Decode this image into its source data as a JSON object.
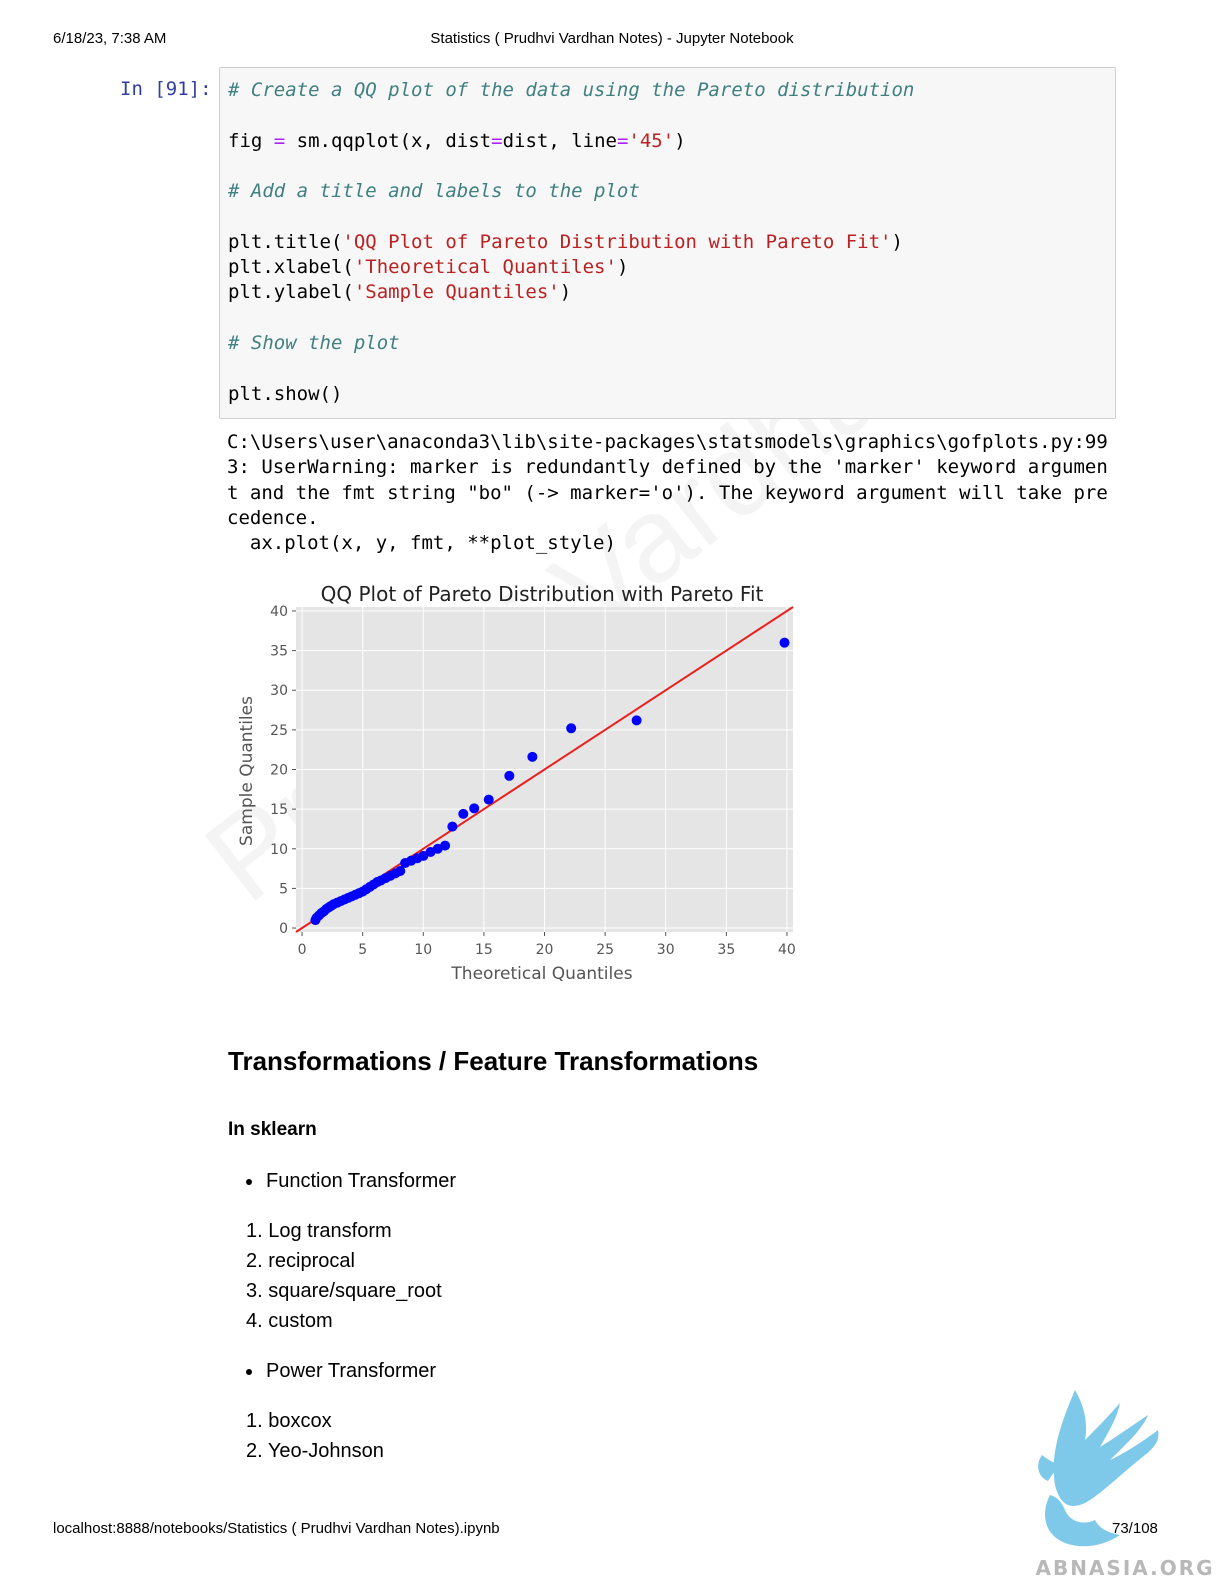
{
  "header": {
    "datetime": "6/18/23, 7:38 AM",
    "title": "Statistics ( Prudhvi Vardhan Notes) - Jupyter Notebook"
  },
  "footer": {
    "url": "localhost:8888/notebooks/Statistics ( Prudhvi Vardhan Notes).ipynb",
    "page": "73/108"
  },
  "cell": {
    "prompt": "In [91]:",
    "comment1": "# Create a QQ plot of the data using the Pareto distribution",
    "line_fig_a": "fig ",
    "line_fig_eq1": "=",
    "line_fig_b": " sm.qqplot(x, dist",
    "line_fig_eq2": "=",
    "line_fig_c": "dist, line",
    "line_fig_eq3": "=",
    "line_fig_str": "'45'",
    "line_fig_d": ")",
    "comment2": "# Add a title and labels to the plot",
    "title_call": "plt.title(",
    "title_str": "'QQ Plot of Pareto Distribution with Pareto Fit'",
    "xlabel_call": "plt.xlabel(",
    "xlabel_str": "'Theoretical Quantiles'",
    "ylabel_call": "plt.ylabel(",
    "ylabel_str": "'Sample Quantiles'",
    "close_paren": ")",
    "comment3": "# Show the plot",
    "show_call": "plt.show()"
  },
  "output": {
    "lines": [
      "C:\\Users\\user\\anaconda3\\lib\\site-packages\\statsmodels\\graphics\\gofplots.py:99",
      "3: UserWarning: marker is redundantly defined by the 'marker' keyword argumen",
      "t and the fmt string \"bo\" (-> marker='o'). The keyword argument will take pre",
      "cedence.",
      "  ax.plot(x, y, fmt, **plot_style)"
    ]
  },
  "chart_data": {
    "type": "scatter",
    "title": "QQ Plot of Pareto Distribution with Pareto Fit",
    "xlabel": "Theoretical Quantiles",
    "ylabel": "Sample Quantiles",
    "xlim": [
      -0.5,
      40.5
    ],
    "ylim": [
      -0.5,
      40.5
    ],
    "xticks": [
      0,
      5,
      10,
      15,
      20,
      25,
      30,
      35,
      40
    ],
    "yticks": [
      0,
      5,
      10,
      15,
      20,
      25,
      30,
      35,
      40
    ],
    "grid": true,
    "point_color": "#0000ff",
    "line_color": "#e8211e",
    "background_color": "#e5e5e5",
    "reference_line": {
      "type": "45-degree",
      "from": [
        -0.5,
        -0.5
      ],
      "to": [
        40.5,
        40.5
      ]
    },
    "points": [
      [
        1.1,
        1.0
      ],
      [
        1.2,
        1.3
      ],
      [
        1.4,
        1.6
      ],
      [
        1.6,
        1.9
      ],
      [
        1.8,
        2.1
      ],
      [
        2.0,
        2.4
      ],
      [
        2.2,
        2.6
      ],
      [
        2.4,
        2.8
      ],
      [
        2.6,
        3.0
      ],
      [
        2.9,
        3.2
      ],
      [
        3.2,
        3.4
      ],
      [
        3.5,
        3.6
      ],
      [
        3.8,
        3.8
      ],
      [
        4.1,
        4.0
      ],
      [
        4.4,
        4.2
      ],
      [
        4.7,
        4.4
      ],
      [
        5.0,
        4.6
      ],
      [
        5.3,
        4.9
      ],
      [
        5.6,
        5.2
      ],
      [
        5.9,
        5.5
      ],
      [
        6.2,
        5.8
      ],
      [
        6.5,
        6.0
      ],
      [
        6.9,
        6.3
      ],
      [
        7.3,
        6.6
      ],
      [
        7.7,
        6.9
      ],
      [
        8.1,
        7.2
      ],
      [
        8.5,
        8.2
      ],
      [
        9.0,
        8.5
      ],
      [
        9.5,
        8.8
      ],
      [
        10.0,
        9.1
      ],
      [
        10.6,
        9.6
      ],
      [
        11.2,
        10.0
      ],
      [
        11.8,
        10.4
      ],
      [
        12.4,
        12.8
      ],
      [
        13.3,
        14.4
      ],
      [
        14.2,
        15.1
      ],
      [
        15.4,
        16.2
      ],
      [
        17.1,
        19.2
      ],
      [
        19.0,
        21.6
      ],
      [
        22.2,
        25.2
      ],
      [
        27.6,
        26.2
      ],
      [
        39.8,
        36.0
      ]
    ]
  },
  "markdown": {
    "heading": "Transformations / Feature Transformations",
    "subheading": "In sklearn",
    "bullet1": "Function Transformer",
    "list1": [
      "Log transform",
      "reciprocal",
      "square/square_root",
      "custom"
    ],
    "bullet2": "Power Transformer",
    "list2": [
      "boxcox",
      "Yeo-Johnson"
    ]
  },
  "watermark": "Prudhvi Vardhan",
  "logo": {
    "text": "ABNASIA.ORG",
    "color": "#7ec8ea"
  }
}
